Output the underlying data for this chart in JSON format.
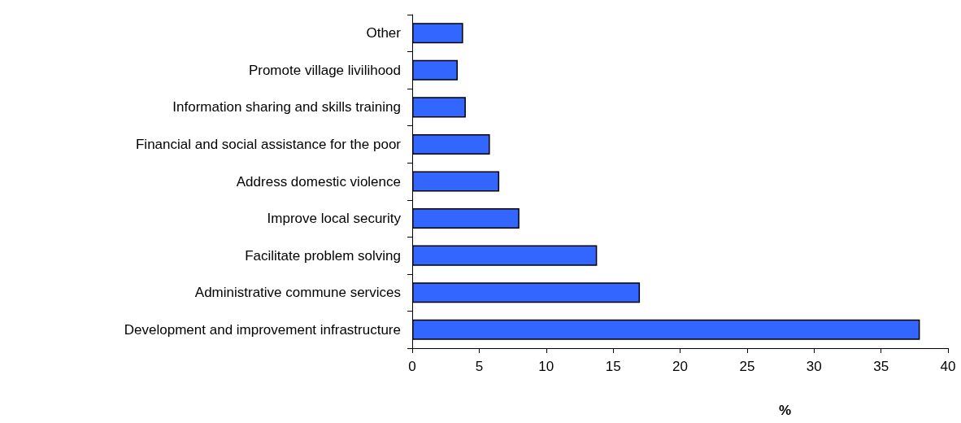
{
  "chart_data": {
    "type": "bar",
    "orientation": "horizontal",
    "categories": [
      "Other",
      "Promote village livilihood",
      "Information sharing and skills training",
      "Financial and social assistance for the poor",
      "Address domestic violence",
      "Improve local security",
      "Facilitate problem solving",
      "Administrative commune services",
      "Development and improvement infrastructure"
    ],
    "values": [
      3.8,
      3.4,
      4.0,
      5.8,
      6.5,
      8.0,
      13.8,
      17.0,
      37.9
    ],
    "color": "#3366ff",
    "xlabel": "%",
    "xlim": [
      0,
      40
    ],
    "xticks": [
      0,
      5,
      10,
      15,
      20,
      25,
      30,
      35,
      40
    ],
    "grid": false
  }
}
